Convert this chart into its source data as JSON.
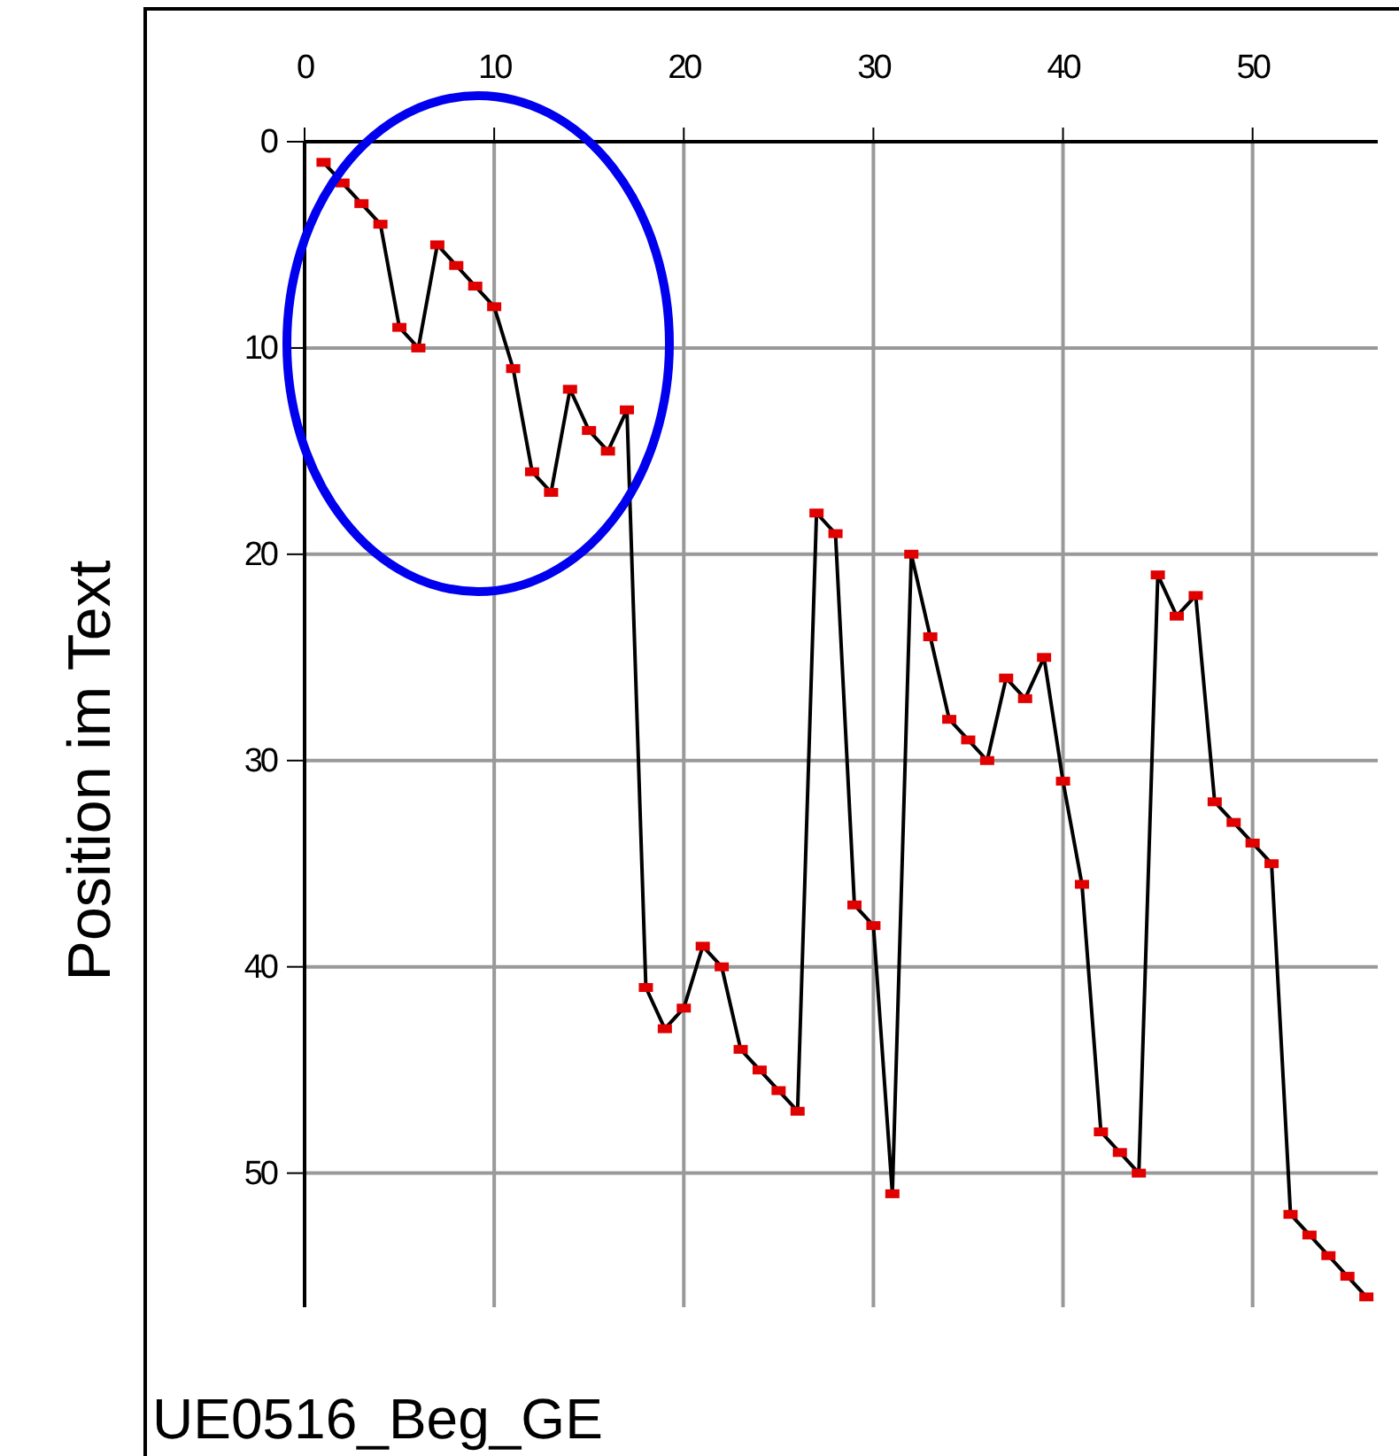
{
  "chart_data": {
    "type": "line",
    "ylabel": "Position im Text",
    "annotations": [
      "UE0516_Beg_GE"
    ],
    "x": [
      1,
      2,
      3,
      4,
      5,
      6,
      7,
      8,
      9,
      10,
      11,
      12,
      13,
      14,
      15,
      16,
      17,
      18,
      19,
      20,
      21,
      22,
      23,
      24,
      25,
      26,
      27,
      28,
      29,
      30,
      31,
      32,
      33,
      34,
      35,
      36,
      37,
      38,
      39,
      40,
      41,
      42,
      43,
      44,
      45,
      46,
      47,
      48,
      49,
      50,
      51,
      52,
      53,
      54,
      55,
      56
    ],
    "series": [
      {
        "color": "#000000",
        "marker": "none",
        "values": [
          1,
          2,
          3,
          4,
          9,
          10,
          5,
          6,
          7,
          8,
          11,
          16,
          17,
          12,
          14,
          15,
          13,
          41,
          43,
          42,
          39,
          40,
          44,
          45,
          46,
          47,
          18,
          19,
          37,
          38,
          51,
          20,
          24,
          28,
          29,
          30,
          26,
          27,
          25,
          31,
          36,
          48,
          49,
          50,
          21,
          23,
          22,
          32,
          33,
          34,
          35,
          52,
          53,
          54,
          55,
          56
        ]
      },
      {
        "type": "scatter",
        "color": "#e00000",
        "marker": "square",
        "values": [
          1,
          2,
          3,
          4,
          9,
          10,
          5,
          6,
          7,
          8,
          11,
          16,
          17,
          12,
          14,
          15,
          13,
          41,
          43,
          42,
          39,
          40,
          44,
          45,
          46,
          47,
          18,
          19,
          37,
          38,
          51,
          20,
          24,
          28,
          29,
          30,
          26,
          27,
          25,
          31,
          36,
          48,
          49,
          50,
          21,
          23,
          22,
          32,
          33,
          34,
          35,
          52,
          53,
          54,
          55,
          56
        ]
      }
    ],
    "xlim": [
      0,
      56.6
    ],
    "xticks": [
      0,
      10,
      20,
      30,
      40,
      50
    ],
    "ylim": [
      56.5,
      0
    ],
    "yticks": [
      0,
      10,
      20,
      30,
      40,
      50
    ],
    "grid": true
  }
}
